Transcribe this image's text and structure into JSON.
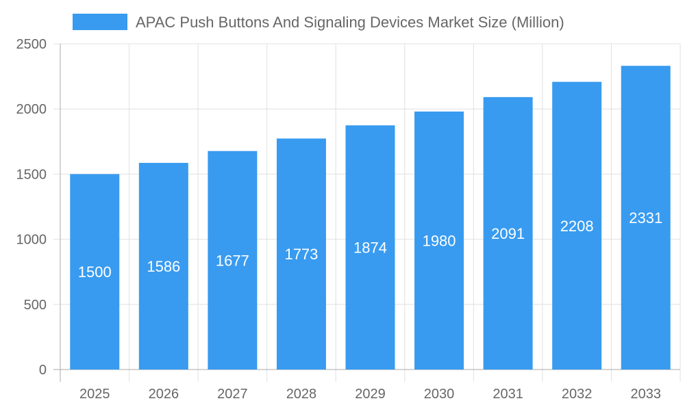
{
  "chart_data": {
    "type": "bar",
    "title": "",
    "xlabel": "",
    "ylabel": "",
    "legend": {
      "position": "top",
      "entries": [
        "APAC Push Buttons And Signaling Devices Market Size (Million)"
      ]
    },
    "categories": [
      "2025",
      "2026",
      "2027",
      "2028",
      "2029",
      "2030",
      "2031",
      "2032",
      "2033"
    ],
    "series": [
      {
        "name": "APAC Push Buttons And Signaling Devices Market Size (Million)",
        "values": [
          1500,
          1586,
          1677,
          1773,
          1874,
          1980,
          2091,
          2208,
          2331
        ],
        "color": "#389bf0"
      }
    ],
    "ylim": [
      0,
      2500
    ],
    "yticks": [
      0,
      500,
      1000,
      1500,
      2000,
      2500
    ],
    "grid": true,
    "data_labels": true
  }
}
